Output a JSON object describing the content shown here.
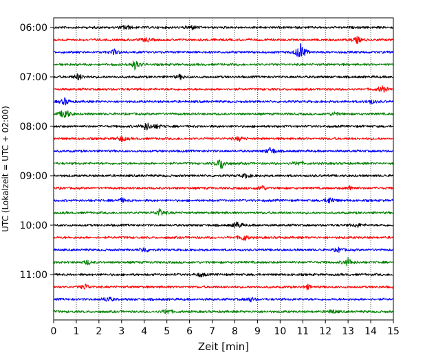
{
  "chart_data": {
    "type": "line",
    "title": "",
    "xlabel": "Zeit  [min]",
    "ylabel": "UTC (Lokalzeit = UTC + 02:00)",
    "xlim": [
      0,
      15
    ],
    "x_ticks": [
      "0",
      "1",
      "2",
      "3",
      "4",
      "5",
      "6",
      "7",
      "8",
      "9",
      "10",
      "11",
      "12",
      "13",
      "14",
      "15"
    ],
    "y_ticks": [
      "06:00",
      "07:00",
      "08:00",
      "09:00",
      "10:00",
      "11:00"
    ],
    "grid": "vertical dotted at each minute",
    "trace_interval_minutes": 15,
    "first_trace_utc": "06:00",
    "trace_colors": [
      "#000000",
      "#ff0000",
      "#0000ff",
      "#008000"
    ],
    "traces": [
      {
        "start": "06:00",
        "color": "#000000",
        "events": [
          {
            "t": 3.2,
            "amp": 4
          },
          {
            "t": 6.1,
            "amp": 3
          }
        ]
      },
      {
        "start": "06:15",
        "color": "#ff0000",
        "events": [
          {
            "t": 13.4,
            "amp": 5
          },
          {
            "t": 4.1,
            "amp": 3
          }
        ]
      },
      {
        "start": "06:30",
        "color": "#0000ff",
        "events": [
          {
            "t": 10.9,
            "amp": 14
          },
          {
            "t": 2.7,
            "amp": 4
          }
        ]
      },
      {
        "start": "06:45",
        "color": "#008000",
        "events": [
          {
            "t": 3.6,
            "amp": 7
          }
        ]
      },
      {
        "start": "07:00",
        "color": "#000000",
        "events": [
          {
            "t": 1.1,
            "amp": 5
          },
          {
            "t": 5.6,
            "amp": 3
          }
        ]
      },
      {
        "start": "07:15",
        "color": "#ff0000",
        "events": [
          {
            "t": 14.5,
            "amp": 5
          }
        ]
      },
      {
        "start": "07:30",
        "color": "#0000ff",
        "events": [
          {
            "t": 0.5,
            "amp": 5
          },
          {
            "t": 14.0,
            "amp": 3
          }
        ]
      },
      {
        "start": "07:45",
        "color": "#008000",
        "events": [
          {
            "t": 0.5,
            "amp": 9
          },
          {
            "t": 12.4,
            "amp": 3
          }
        ]
      },
      {
        "start": "08:00",
        "color": "#000000",
        "events": [
          {
            "t": 4.1,
            "amp": 6
          },
          {
            "t": 4.6,
            "amp": 3
          }
        ]
      },
      {
        "start": "08:15",
        "color": "#ff0000",
        "events": [
          {
            "t": 3.0,
            "amp": 4
          },
          {
            "t": 8.2,
            "amp": 3
          }
        ]
      },
      {
        "start": "08:30",
        "color": "#0000ff",
        "events": [
          {
            "t": 9.6,
            "amp": 6
          }
        ]
      },
      {
        "start": "08:45",
        "color": "#008000",
        "events": [
          {
            "t": 7.4,
            "amp": 9
          },
          {
            "t": 10.8,
            "amp": 3
          }
        ]
      },
      {
        "start": "09:00",
        "color": "#000000",
        "events": [
          {
            "t": 8.5,
            "amp": 3
          }
        ]
      },
      {
        "start": "09:15",
        "color": "#ff0000",
        "events": [
          {
            "t": 9.2,
            "amp": 4
          },
          {
            "t": 13.1,
            "amp": 3
          }
        ]
      },
      {
        "start": "09:30",
        "color": "#0000ff",
        "events": [
          {
            "t": 12.2,
            "amp": 5
          },
          {
            "t": 3.0,
            "amp": 3
          }
        ]
      },
      {
        "start": "09:45",
        "color": "#008000",
        "events": [
          {
            "t": 4.7,
            "amp": 6
          }
        ]
      },
      {
        "start": "10:00",
        "color": "#000000",
        "events": [
          {
            "t": 8.1,
            "amp": 5
          },
          {
            "t": 13.4,
            "amp": 3
          }
        ]
      },
      {
        "start": "10:15",
        "color": "#ff0000",
        "events": [
          {
            "t": 8.4,
            "amp": 5
          }
        ]
      },
      {
        "start": "10:30",
        "color": "#0000ff",
        "events": [
          {
            "t": 4.0,
            "amp": 4
          },
          {
            "t": 12.6,
            "amp": 3
          }
        ]
      },
      {
        "start": "10:45",
        "color": "#008000",
        "events": [
          {
            "t": 13.0,
            "amp": 6
          },
          {
            "t": 1.5,
            "amp": 3
          }
        ]
      },
      {
        "start": "11:00",
        "color": "#000000",
        "events": [
          {
            "t": 6.5,
            "amp": 3
          }
        ]
      },
      {
        "start": "11:15",
        "color": "#ff0000",
        "events": [
          {
            "t": 1.4,
            "amp": 4
          },
          {
            "t": 11.2,
            "amp": 3
          }
        ]
      },
      {
        "start": "11:30",
        "color": "#0000ff",
        "events": [
          {
            "t": 2.4,
            "amp": 4
          },
          {
            "t": 8.7,
            "amp": 3
          }
        ]
      },
      {
        "start": "11:45",
        "color": "#008000",
        "events": [
          {
            "t": 5.0,
            "amp": 4
          },
          {
            "t": 12.3,
            "amp": 3
          }
        ]
      }
    ]
  }
}
